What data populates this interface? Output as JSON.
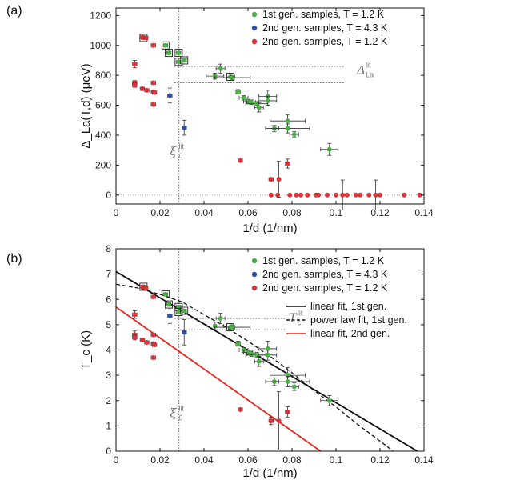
{
  "chart_data": [
    {
      "panel_label": "(a)",
      "type": "scatter",
      "xlabel": "1/d (1/nm)",
      "ylabel": "Δ_La(T,d) (μeV)",
      "xlim": [
        0,
        0.14
      ],
      "ylim": [
        -60,
        1250
      ],
      "xticks": [
        0,
        0.02,
        0.04,
        0.06,
        0.08,
        0.1,
        0.12,
        0.14
      ],
      "yticks": [
        0,
        200,
        400,
        600,
        800,
        1000,
        1200
      ],
      "xtick_labels": [
        "0",
        "0.02",
        "0.04",
        "0.06",
        "0.08",
        "0.1",
        "0.12",
        "0.14"
      ],
      "ytick_labels": [
        "0",
        "200",
        "400",
        "600",
        "800",
        "1000",
        "1200"
      ],
      "ref_lines": {
        "vertical_x": 0.0286,
        "horizontal_y": [
          860,
          750
        ],
        "zero_line": true
      },
      "annotations": [
        {
          "main": "Δ",
          "sup": "lit",
          "sub": "La",
          "x": 0.1095,
          "y": 810
        },
        {
          "main": "ξ",
          "sup": "lit",
          "sub": "0",
          "x": 0.0245,
          "y": 265
        }
      ],
      "legend": [
        {
          "label": "1st gen. samples, T = 1.2 K",
          "color": "#4caf45"
        },
        {
          "label": "2nd gen. samples, T = 4.3 K",
          "color": "#2d4fa3"
        },
        {
          "label": "2nd gen. samples, T = 1.2 K",
          "color": "#d9343a"
        }
      ],
      "series": [
        {
          "name": "1st gen. samples, T = 1.2 K",
          "color": "#4caf45",
          "points": [
            {
              "x": 0.0125,
              "y": 1050,
              "xerr": 0.001,
              "box": true
            },
            {
              "x": 0.0225,
              "y": 1000,
              "xerr": 0.001,
              "box": true
            },
            {
              "x": 0.024,
              "y": 950,
              "xerr": 0.001,
              "box": true
            },
            {
              "x": 0.0285,
              "y": 950,
              "xerr": 0.001,
              "box": true
            },
            {
              "x": 0.0285,
              "y": 890,
              "xerr": 0.001,
              "box": true
            },
            {
              "x": 0.031,
              "y": 900,
              "xerr": 0.001,
              "box": true
            },
            {
              "x": 0.0475,
              "y": 845,
              "xerr": 0.002,
              "yerr": 30
            },
            {
              "x": 0.045,
              "y": 795,
              "xerr": 0.004,
              "yerr": 20
            },
            {
              "x": 0.052,
              "y": 790,
              "xerr": 0.002,
              "box": true
            },
            {
              "x": 0.053,
              "y": 785,
              "xerr": 0.008,
              "yerr": 15
            },
            {
              "x": 0.0555,
              "y": 690,
              "xerr": 0.001,
              "yerr": 15
            },
            {
              "x": 0.058,
              "y": 650,
              "xerr": 0.002,
              "yerr": 15
            },
            {
              "x": 0.06,
              "y": 625,
              "xerr": 0.002,
              "yerr": 15
            },
            {
              "x": 0.0615,
              "y": 620,
              "xerr": 0.002,
              "yerr": 15
            },
            {
              "x": 0.064,
              "y": 610,
              "xerr": 0.005,
              "yerr": 15
            },
            {
              "x": 0.065,
              "y": 585,
              "xerr": 0.002,
              "yerr": 30
            },
            {
              "x": 0.069,
              "y": 660,
              "xerr": 0.004,
              "yerr": 40
            },
            {
              "x": 0.069,
              "y": 630,
              "xerr": 0.004,
              "yerr": 30
            },
            {
              "x": 0.072,
              "y": 445,
              "xerr": 0.002,
              "yerr": 20
            },
            {
              "x": 0.078,
              "y": 495,
              "xerr": 0.008,
              "yerr": 40
            },
            {
              "x": 0.078,
              "y": 445,
              "xerr": 0.01,
              "yerr": 30
            },
            {
              "x": 0.081,
              "y": 405,
              "xerr": 0.002,
              "yerr": 20
            },
            {
              "x": 0.097,
              "y": 305,
              "xerr": 0.004,
              "yerr": 40
            }
          ]
        },
        {
          "name": "2nd gen. samples, T = 4.3 K",
          "color": "#2d4fa3",
          "points": [
            {
              "x": 0.0245,
              "y": 665,
              "xerr": 0.001,
              "yerr": 50
            },
            {
              "x": 0.031,
              "y": 450,
              "xerr": 0.001,
              "yerr": 50
            }
          ]
        },
        {
          "name": "2nd gen. samples, T = 1.2 K",
          "color": "#d9343a",
          "points": [
            {
              "x": 0.0085,
              "y": 875,
              "xerr": 0.001,
              "yerr": 25
            },
            {
              "x": 0.0085,
              "y": 750,
              "xerr": 0.001,
              "yerr": 15
            },
            {
              "x": 0.0085,
              "y": 735,
              "xerr": 0.001,
              "yerr": 15
            },
            {
              "x": 0.012,
              "y": 1055,
              "xerr": 0.001
            },
            {
              "x": 0.0135,
              "y": 1050,
              "xerr": 0.001
            },
            {
              "x": 0.012,
              "y": 710,
              "xerr": 0.001
            },
            {
              "x": 0.014,
              "y": 700,
              "xerr": 0.001
            },
            {
              "x": 0.017,
              "y": 1000,
              "xerr": 0.001
            },
            {
              "x": 0.017,
              "y": 750,
              "xerr": 0.001
            },
            {
              "x": 0.017,
              "y": 690,
              "xerr": 0.001
            },
            {
              "x": 0.0175,
              "y": 685,
              "xerr": 0.001
            },
            {
              "x": 0.017,
              "y": 605,
              "xerr": 0.001
            },
            {
              "x": 0.0565,
              "y": 230,
              "xerr": 0.001
            },
            {
              "x": 0.0705,
              "y": 105,
              "xerr": 0.001
            },
            {
              "x": 0.074,
              "y": 105,
              "yerr": 120
            },
            {
              "x": 0.078,
              "y": 210,
              "xerr": 0.001,
              "yerr": 30
            },
            {
              "x": 0.0705,
              "y": 0
            },
            {
              "x": 0.0735,
              "y": 0
            },
            {
              "x": 0.079,
              "y": 0
            },
            {
              "x": 0.082,
              "y": 0
            },
            {
              "x": 0.084,
              "y": 0
            },
            {
              "x": 0.087,
              "y": 0
            },
            {
              "x": 0.091,
              "y": 0
            },
            {
              "x": 0.092,
              "y": 0
            },
            {
              "x": 0.096,
              "y": 0
            },
            {
              "x": 0.1,
              "y": 0
            },
            {
              "x": 0.103,
              "y": 0,
              "yerr": 100
            },
            {
              "x": 0.105,
              "y": 0
            },
            {
              "x": 0.109,
              "y": 0
            },
            {
              "x": 0.111,
              "y": 0
            },
            {
              "x": 0.115,
              "y": 0
            },
            {
              "x": 0.118,
              "y": 0,
              "yerr": 100
            },
            {
              "x": 0.12,
              "y": 0
            },
            {
              "x": 0.131,
              "y": 0
            },
            {
              "x": 0.138,
              "y": 0
            }
          ]
        }
      ]
    },
    {
      "panel_label": "(b)",
      "type": "scatter",
      "xlabel": "1/d (1/nm)",
      "ylabel": "T_c (K)",
      "xlim": [
        0,
        0.14
      ],
      "ylim": [
        0,
        8
      ],
      "xticks": [
        0,
        0.02,
        0.04,
        0.06,
        0.08,
        0.1,
        0.12,
        0.14
      ],
      "yticks": [
        0,
        1,
        2,
        3,
        4,
        5,
        6,
        7,
        8
      ],
      "xtick_labels": [
        "0",
        "0.02",
        "0.04",
        "0.06",
        "0.08",
        "0.1",
        "0.12",
        "0.14"
      ],
      "ytick_labels": [
        "0",
        "1",
        "2",
        "3",
        "4",
        "5",
        "6",
        "7",
        "8"
      ],
      "ref_lines": {
        "vertical_x": 0.0286,
        "horizontal_y": [
          5.25,
          4.8
        ],
        "zero_line": false
      },
      "annotations": [
        {
          "main": "T",
          "sup": "lit",
          "sub": "c",
          "x": 0.0785,
          "y": 5.1
        },
        {
          "main": "ξ",
          "sup": "lit",
          "sub": "0",
          "x": 0.0245,
          "y": 1.35
        }
      ],
      "legend": [
        {
          "label": "1st gen. samples, T = 1.2 K",
          "color": "#4caf45"
        },
        {
          "label": "2nd gen. samples, T = 4.3 K",
          "color": "#2d4fa3"
        },
        {
          "label": "2nd gen. samples, T = 1.2 K",
          "color": "#d9343a"
        }
      ],
      "fit_legend": [
        {
          "label": "linear fit, 1st gen.",
          "color": "#111111",
          "dash": false
        },
        {
          "label": "power law fit, 1st gen.",
          "color": "#111111",
          "dash": true
        },
        {
          "label": "linear fit, 2nd gen.",
          "color": "#e8261c",
          "dash": false
        }
      ],
      "fits": [
        {
          "name": "linear fit, 1st gen.",
          "color": "#111111",
          "dash": false,
          "points": [
            [
              0,
              7.1
            ],
            [
              0.137,
              0
            ]
          ]
        },
        {
          "name": "power law fit, 1st gen.",
          "color": "#111111",
          "dash": true,
          "points": [
            [
              0,
              6.6
            ],
            [
              0.01,
              6.45
            ],
            [
              0.02,
              6.2
            ],
            [
              0.03,
              5.9
            ],
            [
              0.04,
              5.4
            ],
            [
              0.05,
              4.9
            ],
            [
              0.06,
              4.35
            ],
            [
              0.07,
              3.75
            ],
            [
              0.08,
              3.1
            ],
            [
              0.09,
              2.4
            ],
            [
              0.1,
              1.75
            ],
            [
              0.11,
              1.05
            ],
            [
              0.12,
              0.4
            ],
            [
              0.126,
              0
            ]
          ]
        },
        {
          "name": "linear fit, 2nd gen.",
          "color": "#e8261c",
          "dash": false,
          "points": [
            [
              0,
              5.7
            ],
            [
              0.093,
              0
            ]
          ]
        }
      ],
      "series": [
        {
          "name": "1st gen. samples, T = 1.2 K",
          "color": "#4caf45",
          "points": [
            {
              "x": 0.0125,
              "y": 6.5,
              "xerr": 0.001,
              "box": true
            },
            {
              "x": 0.0225,
              "y": 6.2,
              "xerr": 0.001,
              "box": true
            },
            {
              "x": 0.024,
              "y": 5.8,
              "xerr": 0.001,
              "box": true
            },
            {
              "x": 0.0285,
              "y": 5.7,
              "xerr": 0.001,
              "box": true
            },
            {
              "x": 0.0285,
              "y": 5.5,
              "xerr": 0.001,
              "box": true
            },
            {
              "x": 0.031,
              "y": 5.55,
              "xerr": 0.001,
              "box": true
            },
            {
              "x": 0.0475,
              "y": 5.25,
              "xerr": 0.002,
              "yerr": 0.2
            },
            {
              "x": 0.045,
              "y": 4.95,
              "xerr": 0.004,
              "yerr": 0.15
            },
            {
              "x": 0.052,
              "y": 4.9,
              "xerr": 0.002,
              "box": true
            },
            {
              "x": 0.053,
              "y": 4.9,
              "xerr": 0.008,
              "yerr": 0.1
            },
            {
              "x": 0.0555,
              "y": 4.25,
              "xerr": 0.001,
              "yerr": 0.1
            },
            {
              "x": 0.058,
              "y": 4.0,
              "xerr": 0.002,
              "yerr": 0.1
            },
            {
              "x": 0.06,
              "y": 3.9,
              "xerr": 0.002,
              "yerr": 0.1
            },
            {
              "x": 0.0615,
              "y": 3.85,
              "xerr": 0.002,
              "yerr": 0.1
            },
            {
              "x": 0.064,
              "y": 3.8,
              "xerr": 0.005,
              "yerr": 0.1
            },
            {
              "x": 0.065,
              "y": 3.55,
              "xerr": 0.002,
              "yerr": 0.2
            },
            {
              "x": 0.069,
              "y": 4.05,
              "xerr": 0.004,
              "yerr": 0.3
            },
            {
              "x": 0.069,
              "y": 3.8,
              "xerr": 0.004,
              "yerr": 0.2
            },
            {
              "x": 0.072,
              "y": 2.75,
              "xerr": 0.002,
              "yerr": 0.15
            },
            {
              "x": 0.078,
              "y": 3.0,
              "xerr": 0.008,
              "yerr": 0.3
            },
            {
              "x": 0.078,
              "y": 2.75,
              "xerr": 0.01,
              "yerr": 0.2
            },
            {
              "x": 0.081,
              "y": 2.55,
              "xerr": 0.002,
              "yerr": 0.15
            },
            {
              "x": 0.097,
              "y": 2.0,
              "xerr": 0.004,
              "yerr": 0.2
            }
          ]
        },
        {
          "name": "2nd gen. samples, T = 4.3 K",
          "color": "#2d4fa3",
          "points": [
            {
              "x": 0.0245,
              "y": 5.35,
              "xerr": 0.001,
              "yerr": 0.3
            },
            {
              "x": 0.031,
              "y": 4.7,
              "xerr": 0.001,
              "yerr": 0.5
            }
          ]
        },
        {
          "name": "2nd gen. samples, T = 1.2 K",
          "color": "#d9343a",
          "points": [
            {
              "x": 0.0085,
              "y": 5.4,
              "xerr": 0.001,
              "yerr": 0.15
            },
            {
              "x": 0.0085,
              "y": 4.6,
              "xerr": 0.001,
              "yerr": 0.15
            },
            {
              "x": 0.0085,
              "y": 4.5,
              "xerr": 0.001,
              "yerr": 0.1
            },
            {
              "x": 0.012,
              "y": 6.5,
              "xerr": 0.001
            },
            {
              "x": 0.0135,
              "y": 6.45,
              "xerr": 0.001
            },
            {
              "x": 0.012,
              "y": 4.4,
              "xerr": 0.001
            },
            {
              "x": 0.014,
              "y": 4.3,
              "xerr": 0.001
            },
            {
              "x": 0.017,
              "y": 6.1,
              "xerr": 0.001
            },
            {
              "x": 0.017,
              "y": 4.6,
              "xerr": 0.001
            },
            {
              "x": 0.017,
              "y": 4.25,
              "xerr": 0.001
            },
            {
              "x": 0.0175,
              "y": 4.2,
              "xerr": 0.001
            },
            {
              "x": 0.017,
              "y": 3.7,
              "xerr": 0.001
            },
            {
              "x": 0.0565,
              "y": 1.65,
              "xerr": 0.001
            },
            {
              "x": 0.0705,
              "y": 1.2,
              "xerr": 0.001,
              "yerr": 0.15
            },
            {
              "x": 0.074,
              "y": 1.2,
              "yerr": 1.15
            },
            {
              "x": 0.078,
              "y": 1.55,
              "xerr": 0.001,
              "yerr": 0.2
            }
          ]
        }
      ]
    }
  ]
}
